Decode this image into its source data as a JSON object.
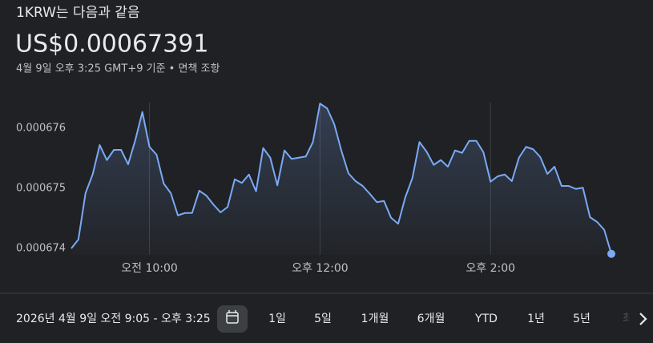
{
  "header": {
    "title": "1KRW는 다음과 같음",
    "price": "US$0.00067391",
    "subtitle": "4월 9일 오후 3:25 GMT+9 기준 • 면책 조항"
  },
  "chart_data": {
    "type": "line",
    "color": "#7aaaf6",
    "x": [
      "09:05",
      "09:10",
      "09:15",
      "09:20",
      "09:25",
      "09:30",
      "09:35",
      "09:40",
      "09:45",
      "09:50",
      "09:55",
      "10:00",
      "10:05",
      "10:10",
      "10:15",
      "10:20",
      "10:25",
      "10:30",
      "10:35",
      "10:40",
      "10:45",
      "10:50",
      "10:55",
      "11:00",
      "11:05",
      "11:10",
      "11:15",
      "11:20",
      "11:25",
      "11:30",
      "11:35",
      "11:40",
      "11:45",
      "11:50",
      "11:55",
      "12:00",
      "12:05",
      "12:10",
      "12:15",
      "12:20",
      "12:25",
      "12:30",
      "12:35",
      "12:40",
      "12:45",
      "12:50",
      "12:55",
      "13:00",
      "13:05",
      "13:10",
      "13:15",
      "13:20",
      "13:25",
      "13:30",
      "13:35",
      "13:40",
      "13:45",
      "13:50",
      "13:55",
      "14:00",
      "14:05",
      "14:10",
      "14:15",
      "14:20",
      "14:25",
      "14:30",
      "14:35",
      "14:40",
      "14:45",
      "14:50",
      "14:55",
      "15:00",
      "15:05",
      "15:10",
      "15:15",
      "15:20",
      "15:25"
    ],
    "values": [
      0.000674,
      0.00067415,
      0.00067492,
      0.00067523,
      0.00067572,
      0.00067547,
      0.00067564,
      0.00067564,
      0.0006754,
      0.0006758,
      0.00067627,
      0.00067569,
      0.00067556,
      0.00067508,
      0.00067492,
      0.00067455,
      0.00067459,
      0.00067459,
      0.00067496,
      0.00067488,
      0.00067473,
      0.0006746,
      0.00067469,
      0.00067515,
      0.00067509,
      0.00067523,
      0.00067495,
      0.00067567,
      0.00067551,
      0.00067505,
      0.00067563,
      0.00067549,
      0.00067551,
      0.00067553,
      0.00067577,
      0.00067641,
      0.00067633,
      0.00067607,
      0.00067563,
      0.00067525,
      0.00067512,
      0.00067504,
      0.00067491,
      0.00067477,
      0.00067479,
      0.00067451,
      0.00067441,
      0.00067485,
      0.00067517,
      0.00067577,
      0.00067561,
      0.00067539,
      0.00067547,
      0.00067536,
      0.00067563,
      0.00067559,
      0.00067579,
      0.00067579,
      0.0006756,
      0.00067511,
      0.0006752,
      0.00067523,
      0.00067512,
      0.00067551,
      0.00067569,
      0.00067565,
      0.00067552,
      0.00067524,
      0.00067536,
      0.00067504,
      0.00067504,
      0.00067499,
      0.00067501,
      0.00067452,
      0.00067444,
      0.00067431,
      0.00067391
    ],
    "xlim": [
      "09:05",
      "15:25"
    ],
    "xticks": [
      {
        "value": "10:00",
        "label": "오전 10:00"
      },
      {
        "value": "12:00",
        "label": "오후 12:00"
      },
      {
        "value": "14:00",
        "label": "오후 2:00"
      }
    ],
    "ylim": [
      0.0006739,
      0.0006766
    ],
    "yticks": [
      0.000674,
      0.000675,
      0.000676
    ],
    "grid": true
  },
  "footer": {
    "range_label": "2026년 4월 9일 오전 9:05 - 오후 3:25",
    "ranges": [
      "1일",
      "5일",
      "1개월",
      "6개월",
      "YTD",
      "1년",
      "5년",
      "최대"
    ]
  }
}
